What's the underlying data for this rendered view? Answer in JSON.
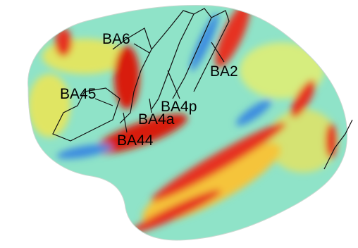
{
  "labels": [
    "BA6",
    "BA45",
    "BA4p",
    "BA4a",
    "BA44",
    "BA2"
  ]
}
